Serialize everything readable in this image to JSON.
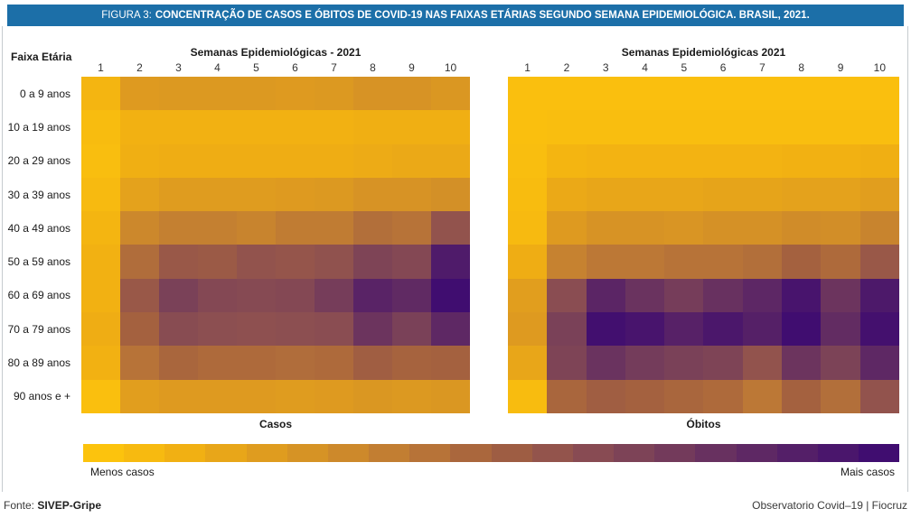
{
  "header": {
    "figure_label": "FIGURA 3:",
    "title": "CONCENTRAÇÃO DE CASOS E ÓBITOS DE COVID-19 NAS FAIXAS ETÁRIAS SEGUNDO SEMANA EPIDEMIOLÓGICA. BRASIL, 2021.",
    "bar_color": "#1C6FA8"
  },
  "axis": {
    "row_header": "Faixa Etária"
  },
  "legend": {
    "left_label": "Menos casos",
    "right_label": "Mais casos",
    "steps": 20
  },
  "colormap": [
    {
      "v": 0.0,
      "c": "#FCC30D"
    },
    {
      "v": 0.1,
      "c": "#F2B112"
    },
    {
      "v": 0.2,
      "c": "#E19E1E"
    },
    {
      "v": 0.3,
      "c": "#D08C29"
    },
    {
      "v": 0.4,
      "c": "#BC7836"
    },
    {
      "v": 0.5,
      "c": "#A4613F"
    },
    {
      "v": 0.6,
      "c": "#8E5050"
    },
    {
      "v": 0.7,
      "c": "#7A4158"
    },
    {
      "v": 0.8,
      "c": "#662F61"
    },
    {
      "v": 0.9,
      "c": "#531E68"
    },
    {
      "v": 1.0,
      "c": "#400D70"
    }
  ],
  "chart_data": [
    {
      "type": "heatmap",
      "title": "Semanas Epidemiológicas - 2021",
      "xlabel": "Casos",
      "x": [
        "1",
        "2",
        "3",
        "4",
        "5",
        "6",
        "7",
        "8",
        "9",
        "10"
      ],
      "rows": [
        "0 a 9 anos",
        "10 a 19 anos",
        "20 a 29 anos",
        "30 a 39 anos",
        "40 a 49 anos",
        "50 a 59 anos",
        "60 a 69 anos",
        "70 a 79 anos",
        "80 a 89 anos",
        "90 anos e +"
      ],
      "value_scale": "relative intensity 0-100 (0 = menos casos, 100 = mais casos), estimated from cell color",
      "values": [
        [
          8,
          22,
          23,
          23,
          23,
          22,
          23,
          26,
          26,
          24
        ],
        [
          4,
          10,
          10,
          10,
          10,
          10,
          10,
          11,
          11,
          11
        ],
        [
          3,
          11,
          12,
          12,
          12,
          12,
          12,
          13,
          14,
          14
        ],
        [
          5,
          18,
          21,
          21,
          21,
          22,
          23,
          26,
          26,
          28
        ],
        [
          8,
          32,
          36,
          36,
          34,
          38,
          38,
          44,
          42,
          58
        ],
        [
          10,
          45,
          55,
          54,
          58,
          57,
          59,
          68,
          65,
          92
        ],
        [
          10,
          55,
          70,
          65,
          64,
          65,
          72,
          87,
          83,
          100
        ],
        [
          12,
          50,
          63,
          61,
          60,
          61,
          62,
          77,
          70,
          84
        ],
        [
          10,
          42,
          48,
          46,
          46,
          45,
          46,
          52,
          49,
          50
        ],
        [
          2,
          20,
          22,
          22,
          22,
          21,
          22,
          24,
          23,
          24
        ]
      ]
    },
    {
      "type": "heatmap",
      "title": "Semanas Epidemiológicas 2021",
      "xlabel": "Óbitos",
      "x": [
        "1",
        "2",
        "3",
        "4",
        "5",
        "6",
        "7",
        "8",
        "9",
        "10"
      ],
      "rows": [
        "0 a 9 anos",
        "10 a 19 anos",
        "20 a 29 anos",
        "30 a 39 anos",
        "40 a 49 anos",
        "50 a 59 anos",
        "60 a 69 anos",
        "70 a 79 anos",
        "80 a 89 anos",
        "90 anos e +"
      ],
      "value_scale": "relative intensity 0-100 (0 = menos casos, 100 = mais casos), estimated from cell color",
      "values": [
        [
          2,
          2,
          2,
          2,
          2,
          2,
          2,
          2,
          2,
          2
        ],
        [
          2,
          3,
          3,
          3,
          3,
          3,
          3,
          3,
          3,
          3
        ],
        [
          3,
          8,
          9,
          9,
          9,
          9,
          9,
          10,
          10,
          11
        ],
        [
          4,
          14,
          16,
          16,
          16,
          17,
          17,
          18,
          18,
          20
        ],
        [
          5,
          22,
          26,
          26,
          25,
          27,
          27,
          30,
          29,
          34
        ],
        [
          12,
          35,
          40,
          40,
          42,
          42,
          44,
          50,
          46,
          55
        ],
        [
          20,
          62,
          86,
          78,
          72,
          79,
          85,
          96,
          77,
          93
        ],
        [
          22,
          70,
          99,
          96,
          88,
          94,
          89,
          100,
          82,
          98
        ],
        [
          16,
          68,
          78,
          73,
          70,
          68,
          58,
          77,
          69,
          84
        ],
        [
          4,
          48,
          52,
          50,
          48,
          46,
          40,
          50,
          44,
          58
        ]
      ]
    }
  ],
  "footer": {
    "source_prefix": "Fonte:",
    "source_name": "SIVEP-Gripe",
    "credit": "Observatorio Covid–19 | Fiocruz"
  }
}
